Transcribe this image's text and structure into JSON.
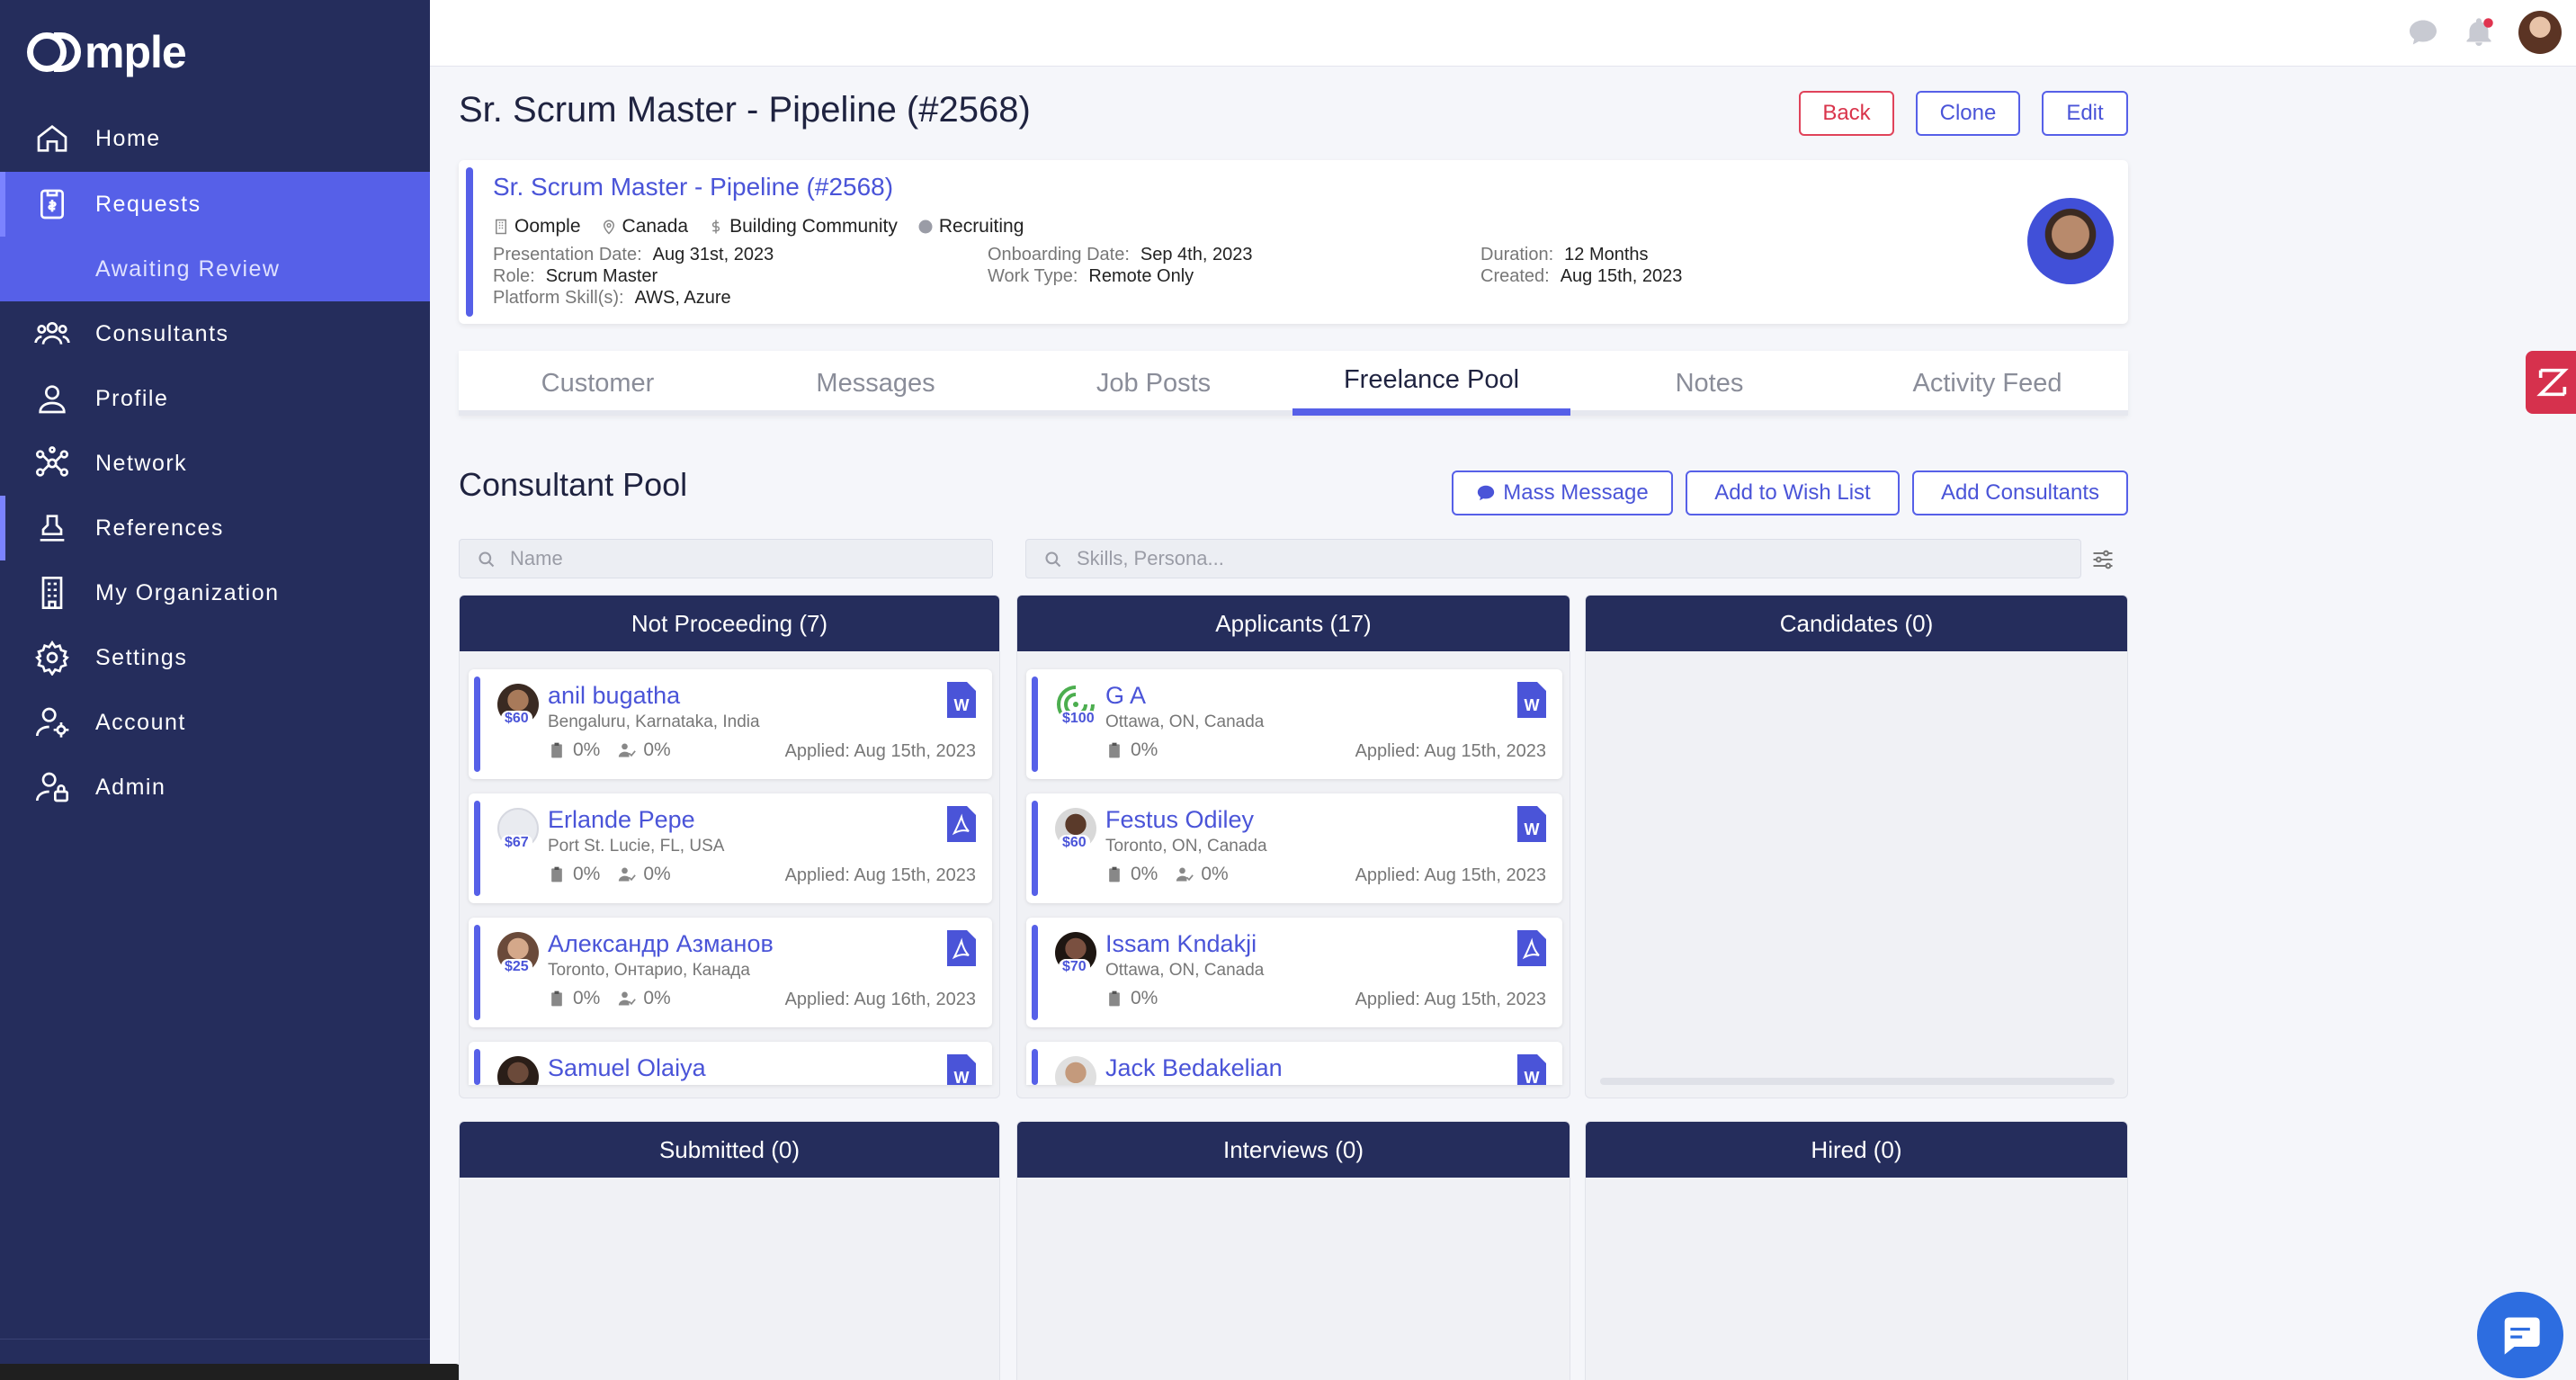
{
  "app": {
    "logo_text": "mple"
  },
  "sidebar": {
    "items": [
      {
        "label": "Home",
        "icon": "home-icon"
      },
      {
        "label": "Requests",
        "icon": "requests-icon"
      },
      {
        "label": "Consultants",
        "icon": "consultants-icon"
      },
      {
        "label": "Profile",
        "icon": "profile-icon"
      },
      {
        "label": "Network",
        "icon": "network-icon"
      },
      {
        "label": "References",
        "icon": "references-icon"
      },
      {
        "label": "My Organization",
        "icon": "organization-icon"
      },
      {
        "label": "Settings",
        "icon": "gear-icon"
      },
      {
        "label": "Account",
        "icon": "account-icon"
      },
      {
        "label": "Admin",
        "icon": "admin-icon"
      }
    ],
    "sub_item": "Awaiting Review"
  },
  "header": {
    "title": "Sr. Scrum Master - Pipeline (#2568)",
    "back_label": "Back",
    "clone_label": "Clone",
    "edit_label": "Edit"
  },
  "request": {
    "title": "Sr. Scrum Master - Pipeline (#2568)",
    "company": "Oomple",
    "location": "Canada",
    "category": "Building Community",
    "status": "Recruiting",
    "presentation_date_label": "Presentation Date:",
    "presentation_date": "Aug 31st, 2023",
    "role_label": "Role:",
    "role": "Scrum Master",
    "skills_label": "Platform Skill(s):",
    "skills": "AWS, Azure",
    "onboarding_label": "Onboarding Date:",
    "onboarding": "Sep 4th, 2023",
    "work_type_label": "Work Type:",
    "work_type": "Remote Only",
    "duration_label": "Duration:",
    "duration": "12 Months",
    "created_label": "Created:",
    "created": "Aug 15th, 2023"
  },
  "tabs": [
    {
      "label": "Customer"
    },
    {
      "label": "Messages"
    },
    {
      "label": "Job Posts"
    },
    {
      "label": "Freelance Pool"
    },
    {
      "label": "Notes"
    },
    {
      "label": "Activity Feed"
    }
  ],
  "pool": {
    "title": "Consultant Pool",
    "mass_message_label": "Mass Message",
    "wish_list_label": "Add to Wish List",
    "add_consultants_label": "Add Consultants",
    "name_placeholder": "Name",
    "skills_placeholder": "Skills, Persona..."
  },
  "columns": {
    "not_proceeding": {
      "title": "Not Proceeding (7)",
      "cards": [
        {
          "name": "anil bugatha",
          "rate": "$60",
          "location": "Bengaluru, Karnataka, India",
          "docs": "0%",
          "checks": "0%",
          "applied": "Applied: Aug 15th, 2023",
          "doc_type": "word-doc-icon"
        },
        {
          "name": "Erlande Pepe",
          "rate": "$67",
          "location": "Port St. Lucie, FL, USA",
          "docs": "0%",
          "checks": "0%",
          "applied": "Applied: Aug 15th, 2023",
          "doc_type": "pdf-doc-icon"
        },
        {
          "name": "Александр Азманов",
          "rate": "$25",
          "location": "Toronto, Онтарио, Канада",
          "docs": "0%",
          "checks": "0%",
          "applied": "Applied: Aug 16th, 2023",
          "doc_type": "pdf-doc-icon"
        },
        {
          "name": "Samuel Olaiya",
          "doc_type": "word-doc-icon"
        }
      ]
    },
    "applicants": {
      "title": "Applicants (17)",
      "cards": [
        {
          "name": "G A",
          "rate": "$100",
          "location": "Ottawa, ON, Canada",
          "docs": "0%",
          "applied": "Applied: Aug 15th, 2023",
          "doc_type": "word-doc-icon"
        },
        {
          "name": "Festus Odiley",
          "rate": "$60",
          "location": "Toronto, ON, Canada",
          "docs": "0%",
          "checks": "0%",
          "applied": "Applied: Aug 15th, 2023",
          "doc_type": "word-doc-icon"
        },
        {
          "name": "Issam Kndakji",
          "rate": "$70",
          "location": "Ottawa, ON, Canada",
          "docs": "0%",
          "applied": "Applied: Aug 15th, 2023",
          "doc_type": "pdf-doc-icon"
        },
        {
          "name": "Jack Bedakelian",
          "doc_type": "word-doc-icon"
        }
      ]
    },
    "candidates": {
      "title": "Candidates (0)"
    },
    "submitted": {
      "title": "Submitted (0)"
    },
    "interviews": {
      "title": "Interviews (0)"
    },
    "hired": {
      "title": "Hired (0)"
    }
  },
  "colors": {
    "sidebar": "#252d5c",
    "accent": "#5660e8",
    "danger": "#e0435a"
  }
}
